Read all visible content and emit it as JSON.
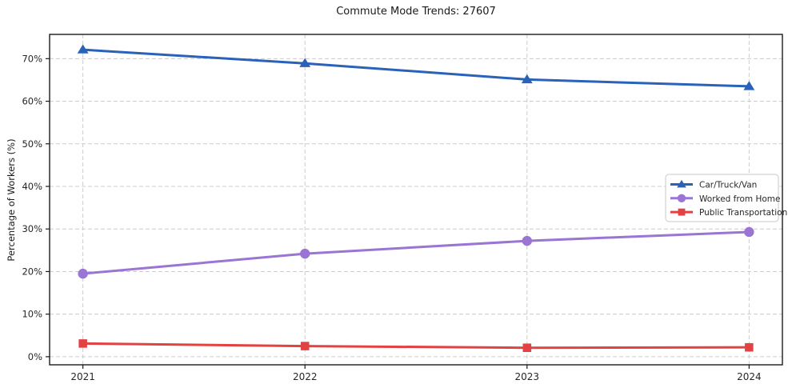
{
  "chart": {
    "title": "Commute Mode Trends: 27607",
    "ylabel": "Percentage of Workers (%)"
  },
  "chart_data": {
    "type": "line",
    "title": "Commute Mode Trends: 27607",
    "xlabel": "",
    "ylabel": "Percentage of Workers (%)",
    "x": [
      2021,
      2022,
      2023,
      2024
    ],
    "x_tick_labels": [
      "2021",
      "2022",
      "2023",
      "2024"
    ],
    "y_ticks": [
      0,
      10,
      20,
      30,
      40,
      50,
      60,
      70
    ],
    "y_tick_suffix": "%",
    "xlim": [
      2020.85,
      2024.15
    ],
    "ylim": [
      -1.9,
      75.7
    ],
    "grid": true,
    "grid_style": "dashed",
    "legend_position": "center-right",
    "series": [
      {
        "name": "Car/Truck/Van",
        "values": [
          72.1,
          68.9,
          65.1,
          63.5
        ],
        "color": "#2a62ba",
        "marker": "triangle"
      },
      {
        "name": "Worked from Home",
        "values": [
          19.5,
          24.2,
          27.2,
          29.3
        ],
        "color": "#9a75d4",
        "marker": "circle"
      },
      {
        "name": "Public Transportation",
        "values": [
          3.1,
          2.5,
          2.1,
          2.2
        ],
        "color": "#e24242",
        "marker": "square"
      }
    ],
    "colors": {
      "grid": "#cccccc",
      "frame": "#1b1b1b",
      "background": "#ffffff",
      "legend_border": "#c8c8c8"
    }
  }
}
